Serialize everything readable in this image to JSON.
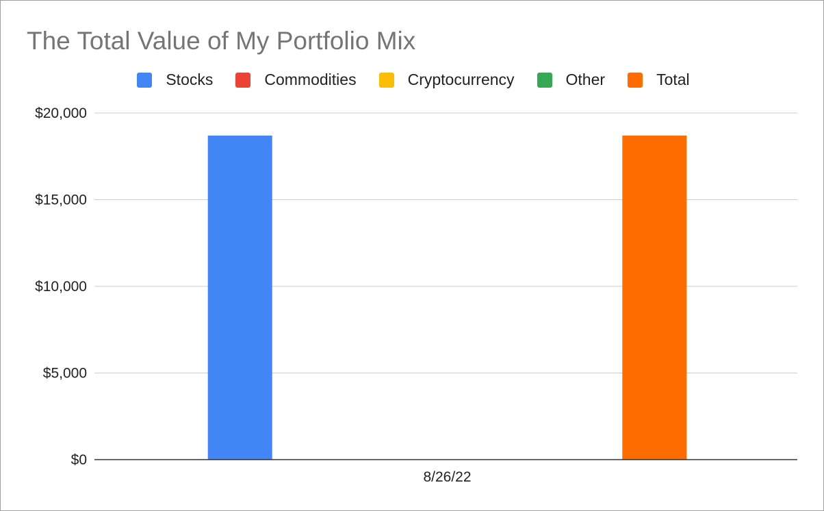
{
  "chart_data": {
    "type": "bar",
    "title": "The Total Value of My Portfolio Mix",
    "categories": [
      "8/26/22"
    ],
    "series": [
      {
        "name": "Stocks",
        "color": "#4285f4",
        "values": [
          18700
        ]
      },
      {
        "name": "Commodities",
        "color": "#ea4335",
        "values": [
          0
        ]
      },
      {
        "name": "Cryptocurrency",
        "color": "#fbbc04",
        "values": [
          0
        ]
      },
      {
        "name": "Other",
        "color": "#34a853",
        "values": [
          0
        ]
      },
      {
        "name": "Total",
        "color": "#ff6d01",
        "values": [
          18700
        ]
      }
    ],
    "ylim": [
      0,
      20000
    ],
    "yticks": [
      0,
      5000,
      10000,
      15000,
      20000
    ],
    "ytick_labels": [
      "$0",
      "$5,000",
      "$10,000",
      "$15,000",
      "$20,000"
    ],
    "grid": true,
    "legend_position": "top"
  }
}
